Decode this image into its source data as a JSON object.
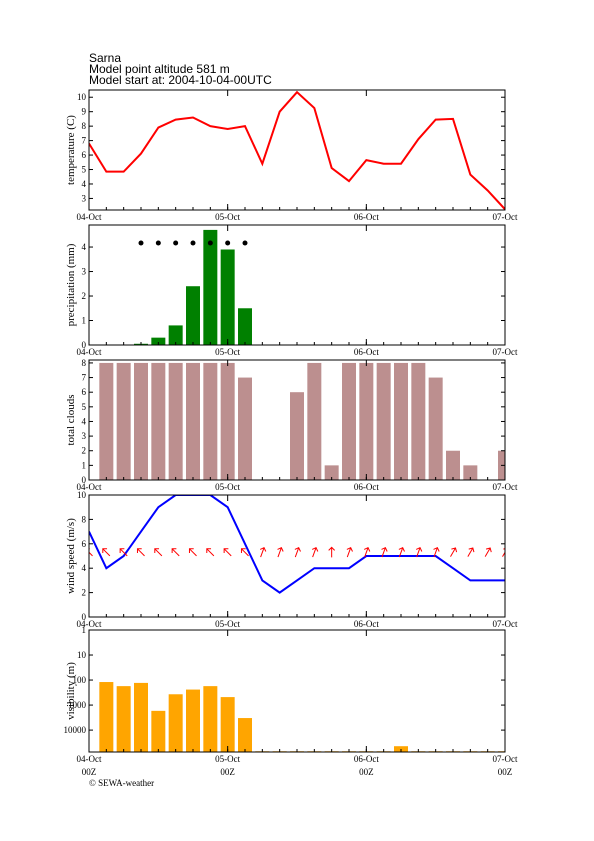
{
  "header": {
    "title": "Sarna",
    "altitude": "Model point altitude  581 m",
    "start": "Model start at: 2004-10-04-00UTC"
  },
  "footer": "© SEWA-weather",
  "chart_data": [
    {
      "type": "line",
      "ylabel": "temperature (C)",
      "color": "#ff0000",
      "x": [
        0,
        3,
        6,
        9,
        12,
        15,
        18,
        21,
        24,
        27,
        30,
        33,
        36,
        39,
        42,
        45,
        48,
        51,
        54,
        57,
        60,
        63,
        66,
        69,
        72
      ],
      "xlim": [
        0,
        72
      ],
      "xticks": [
        {
          "value": 0,
          "label": "04-Oct"
        },
        {
          "value": 24,
          "label": "05-Oct"
        },
        {
          "value": 48,
          "label": "06-Oct"
        },
        {
          "value": 72,
          "label": "07-Oct"
        }
      ],
      "ylim": [
        2.2,
        10.5
      ],
      "yticks": [
        3,
        4,
        5,
        6,
        7,
        8,
        9,
        10
      ],
      "values": [
        6.8,
        4.85,
        4.85,
        6.1,
        7.9,
        8.45,
        8.6,
        8.0,
        7.8,
        8.0,
        5.4,
        9.0,
        10.35,
        9.25,
        5.1,
        4.2,
        5.65,
        5.4,
        5.4,
        7.1,
        8.45,
        8.5,
        4.65,
        3.55,
        2.25
      ]
    },
    {
      "type": "bar",
      "ylabel": "precipitation (mm)",
      "color": "#008000",
      "symbol_color": "#000000",
      "x": [
        0,
        3,
        6,
        9,
        12,
        15,
        18,
        21,
        24,
        27,
        30,
        33,
        36,
        39,
        42,
        45,
        48,
        51,
        54,
        57,
        60,
        63,
        66,
        69,
        72
      ],
      "xlim": [
        0,
        72
      ],
      "xticks": [
        {
          "value": 0,
          "label": "04-Oct"
        },
        {
          "value": 24,
          "label": "05-Oct"
        },
        {
          "value": 48,
          "label": "06-Oct"
        },
        {
          "value": 72,
          "label": "07-Oct"
        }
      ],
      "ylim": [
        0,
        4.9
      ],
      "yticks": [
        0,
        1,
        2,
        3,
        4
      ],
      "values": [
        0,
        0,
        0,
        0.05,
        0.3,
        0.8,
        2.4,
        4.7,
        3.9,
        1.5,
        0,
        0,
        0,
        0,
        0,
        0,
        0,
        0,
        0,
        0,
        0,
        0,
        0,
        0,
        0
      ]
    },
    {
      "type": "bar",
      "ylabel": "total clouds",
      "color": "#bc8f8f",
      "x": [
        0,
        3,
        6,
        9,
        12,
        15,
        18,
        21,
        24,
        27,
        30,
        33,
        36,
        39,
        42,
        45,
        48,
        51,
        54,
        57,
        60,
        63,
        66,
        69,
        72
      ],
      "xlim": [
        0,
        72
      ],
      "xticks": [
        {
          "value": 0,
          "label": "04-Oct"
        },
        {
          "value": 24,
          "label": "05-Oct"
        },
        {
          "value": 48,
          "label": "06-Oct"
        },
        {
          "value": 72,
          "label": "07-Oct"
        }
      ],
      "ylim": [
        0,
        8.2
      ],
      "yticks": [
        0,
        1,
        2,
        3,
        4,
        5,
        6,
        7,
        8
      ],
      "values": [
        0,
        8,
        8,
        8,
        8,
        8,
        8,
        8,
        8,
        7,
        0,
        0,
        6,
        8,
        1,
        8,
        8,
        8,
        8,
        8,
        7,
        2,
        1,
        0,
        2
      ]
    },
    {
      "type": "line",
      "ylabel": "wind speed (m/s)",
      "color": "#0000ff",
      "arrow_color": "#ff0000",
      "x": [
        0,
        3,
        6,
        9,
        12,
        15,
        18,
        21,
        24,
        27,
        30,
        33,
        36,
        39,
        42,
        45,
        48,
        51,
        54,
        57,
        60,
        63,
        66,
        69,
        72
      ],
      "xlim": [
        0,
        72
      ],
      "xticks": [
        {
          "value": 0,
          "label": "04-Oct"
        },
        {
          "value": 24,
          "label": "05-Oct"
        },
        {
          "value": 48,
          "label": "06-Oct"
        },
        {
          "value": 72,
          "label": "07-Oct"
        }
      ],
      "ylim": [
        0,
        10
      ],
      "yticks": [
        0,
        2,
        4,
        6,
        8,
        10
      ],
      "values": [
        7,
        4,
        5,
        7,
        9,
        10,
        10,
        10,
        9,
        6,
        3,
        2,
        3,
        4,
        4,
        4,
        5,
        5,
        5,
        5,
        5,
        4,
        3,
        3,
        3
      ],
      "wind_direction": [
        -45,
        -45,
        -45,
        -45,
        -45,
        -45,
        -45,
        -45,
        -45,
        -45,
        20,
        20,
        20,
        20,
        0,
        20,
        20,
        20,
        20,
        20,
        20,
        30,
        30,
        30,
        30
      ]
    },
    {
      "type": "bar",
      "ylabel": "visibility (m)",
      "color": "#ffa500",
      "log": true,
      "inverted": true,
      "x": [
        0,
        3,
        6,
        9,
        12,
        15,
        18,
        21,
        24,
        27,
        30,
        33,
        36,
        39,
        42,
        45,
        48,
        51,
        54,
        57,
        60,
        63,
        66,
        69,
        72
      ],
      "xlim": [
        0,
        72
      ],
      "xticks": [
        {
          "value": 0,
          "label": "04-Oct"
        },
        {
          "value": 24,
          "label": "05-Oct"
        },
        {
          "value": 48,
          "label": "06-Oct"
        },
        {
          "value": 72,
          "label": "07-Oct"
        }
      ],
      "xtick_sublabels": [
        "00Z",
        "00Z",
        "00Z",
        "00Z"
      ],
      "ylim": [
        1,
        75000
      ],
      "yticks": [
        1,
        10,
        100,
        1000,
        10000
      ],
      "values": [
        75000,
        120,
        175,
        130,
        1700,
        370,
        240,
        175,
        480,
        3300,
        70000,
        70000,
        70000,
        70000,
        70000,
        70000,
        70000,
        70000,
        44000,
        70000,
        70000,
        70000,
        70000,
        70000,
        70000
      ]
    }
  ]
}
